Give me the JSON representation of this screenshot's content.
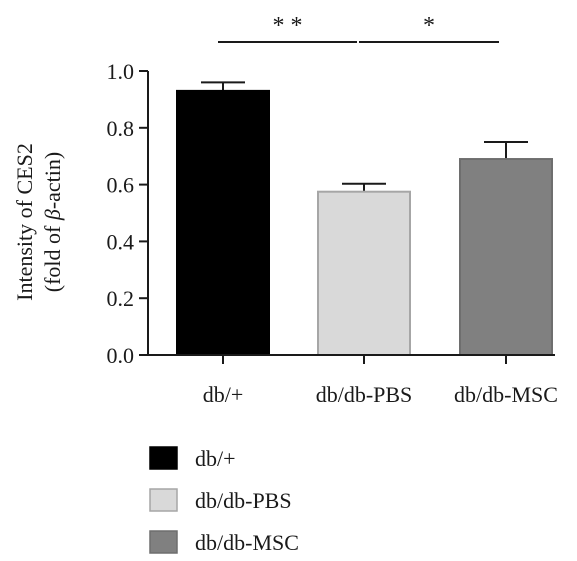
{
  "chart_data": {
    "type": "bar",
    "categories": [
      "db/+",
      "db/db-PBS",
      "db/db-MSC"
    ],
    "values": [
      0.93,
      0.575,
      0.69
    ],
    "errors": [
      0.03,
      0.028,
      0.06
    ],
    "colors": [
      "#000000",
      "#d9d9d9",
      "#808080"
    ],
    "bar_stroke": [
      "#000000",
      "#a6a6a6",
      "#6e6e6e"
    ],
    "ylim": [
      0.0,
      1.0
    ],
    "yticks": [
      "0.0",
      "0.2",
      "0.4",
      "0.6",
      "0.8",
      "1.0"
    ],
    "ylabel_line1": "Intensity of CES2",
    "ylabel_line2_prefix": "(fold of ",
    "ylabel_line2_symbol": "β",
    "ylabel_line2_suffix": "-actin)",
    "significance": [
      {
        "between": [
          0,
          1
        ],
        "label": "* *"
      },
      {
        "between": [
          1,
          2
        ],
        "label": "*"
      }
    ],
    "legend": [
      {
        "label": "db/+",
        "color": "#000000"
      },
      {
        "label": "db/db-PBS",
        "color": "#d9d9d9"
      },
      {
        "label": "db/db-MSC",
        "color": "#808080"
      }
    ]
  }
}
